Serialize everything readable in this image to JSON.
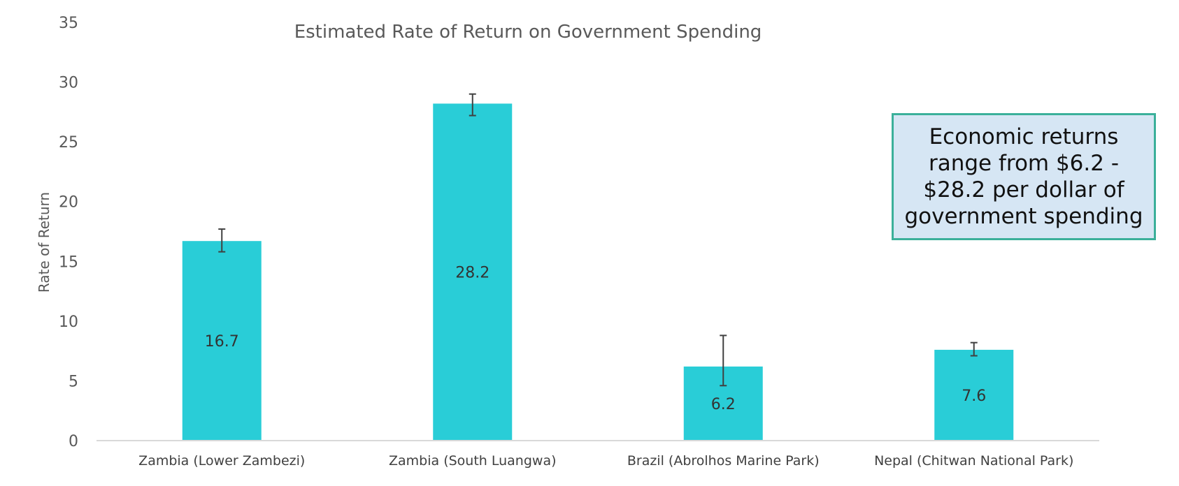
{
  "chart_data": {
    "type": "bar",
    "title": "Estimated Rate of Return on Government Spending",
    "xlabel": "",
    "ylabel": "Rate of Return",
    "ylim": [
      0,
      35
    ],
    "yticks": [
      0,
      5,
      10,
      15,
      20,
      25,
      30,
      35
    ],
    "grid": false,
    "categories": [
      "Zambia (Lower Zambezi)",
      "Zambia (South Luangwa)",
      "Brazil (Abrolhos Marine Park)",
      "Nepal (Chitwan National Park)"
    ],
    "values": [
      16.7,
      28.2,
      6.2,
      7.6
    ],
    "data_labels": [
      "16.7",
      "28.2",
      "6.2",
      "7.6"
    ],
    "error_low": [
      15.8,
      27.2,
      4.6,
      7.1
    ],
    "error_high": [
      17.7,
      29.0,
      8.8,
      8.2
    ],
    "bar_color": "#29cdd7",
    "annotation": "Economic returns range from $6.2 - $28.2 per dollar of government spending"
  }
}
